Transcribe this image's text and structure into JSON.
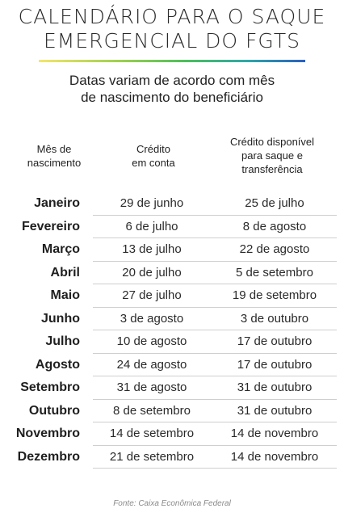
{
  "title": {
    "line1": "CALENDÁRIO PARA O SAQUE",
    "line2": "EMERGENCIAL DO FGTS"
  },
  "subtitle": {
    "line1": "Datas variam de acordo com mês",
    "line2": "de nascimento do beneficiário"
  },
  "headers": {
    "month": [
      "Mês de",
      "nascimento"
    ],
    "credit": [
      "Crédito",
      "em conta"
    ],
    "available": [
      "Crédito disponível",
      "para saque e",
      "transferência"
    ]
  },
  "rows": [
    {
      "month": "Janeiro",
      "credit": "29 de junho",
      "available": "25 de julho"
    },
    {
      "month": "Fevereiro",
      "credit": "6 de julho",
      "available": "8 de agosto"
    },
    {
      "month": "Março",
      "credit": "13 de julho",
      "available": "22 de agosto"
    },
    {
      "month": "Abril",
      "credit": "20 de julho",
      "available": "5 de setembro"
    },
    {
      "month": "Maio",
      "credit": "27 de julho",
      "available": "19 de setembro"
    },
    {
      "month": "Junho",
      "credit": "3 de agosto",
      "available": "3 de outubro"
    },
    {
      "month": "Julho",
      "credit": "10 de agosto",
      "available": "17 de outubro"
    },
    {
      "month": "Agosto",
      "credit": "24 de agosto",
      "available": "17 de outubro"
    },
    {
      "month": "Setembro",
      "credit": "31 de agosto",
      "available": "31 de outubro"
    },
    {
      "month": "Outubro",
      "credit": "8 de setembro",
      "available": "31 de outubro"
    },
    {
      "month": "Novembro",
      "credit": "14 de setembro",
      "available": "14 de novembro"
    },
    {
      "month": "Dezembro",
      "credit": "21 de setembro",
      "available": "14 de novembro"
    }
  ],
  "source": "Fonte: Caixa Econômica Federal"
}
